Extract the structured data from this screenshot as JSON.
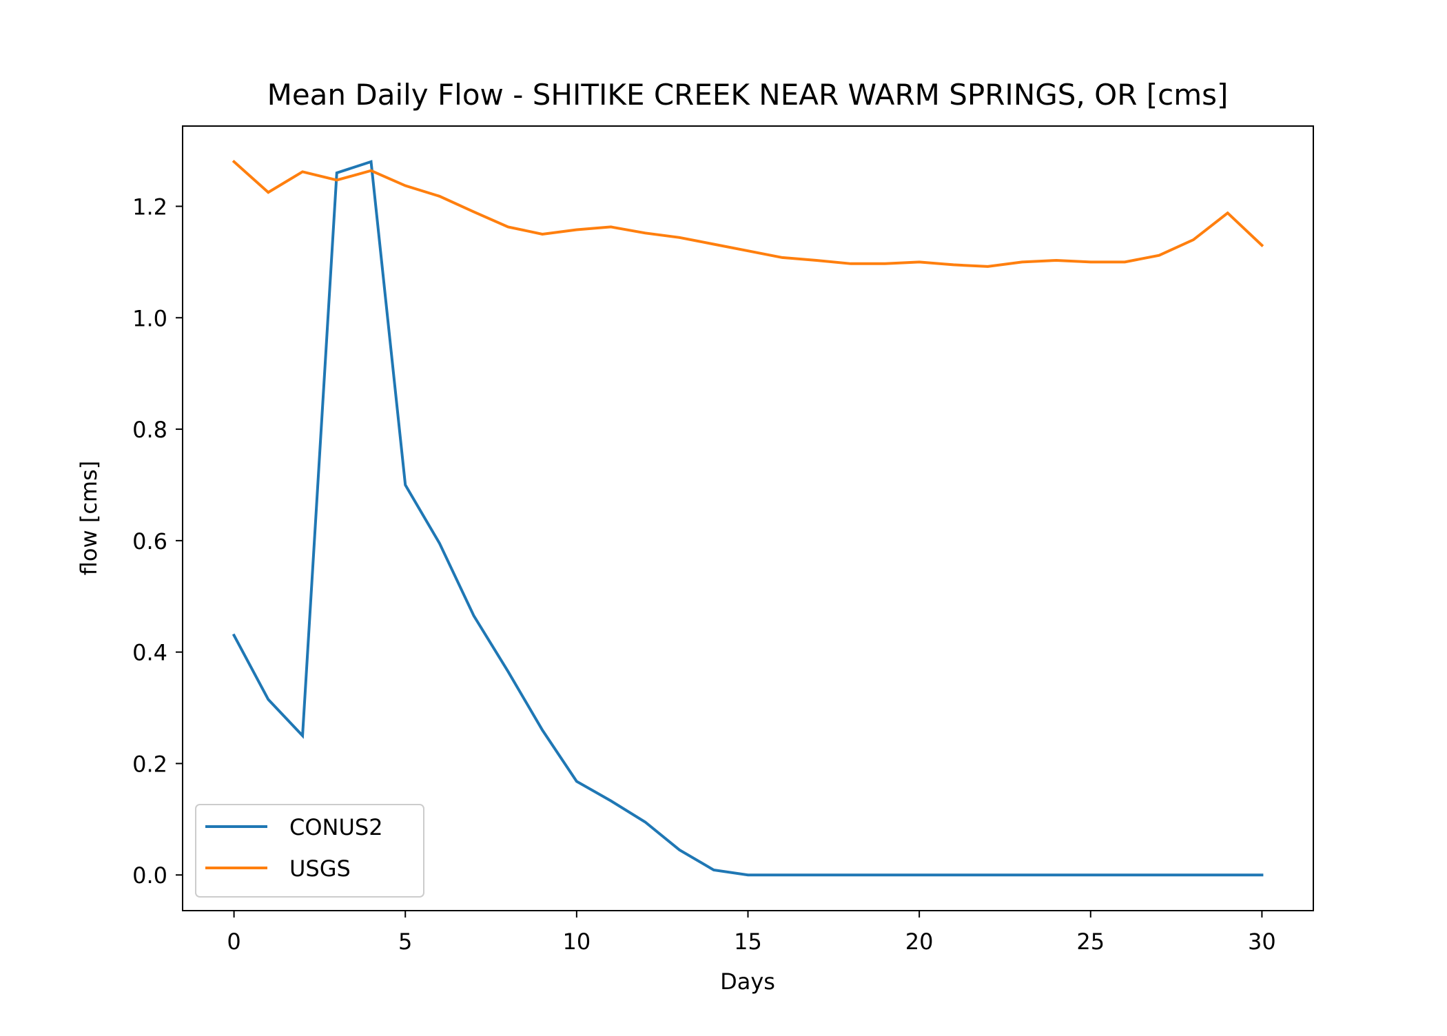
{
  "chart_data": {
    "type": "line",
    "title": "Mean Daily Flow - SHITIKE CREEK NEAR WARM SPRINGS, OR [cms]",
    "xlabel": "Days",
    "ylabel": "flow [cms]",
    "xlim": [
      -1.5,
      31.5
    ],
    "ylim": [
      -0.064,
      1.344
    ],
    "xticks": [
      0,
      5,
      10,
      15,
      20,
      25,
      30
    ],
    "xtick_labels": [
      "0",
      "5",
      "10",
      "15",
      "20",
      "25",
      "30"
    ],
    "yticks": [
      0.0,
      0.2,
      0.4,
      0.6,
      0.8,
      1.0,
      1.2
    ],
    "ytick_labels": [
      "0.0",
      "0.2",
      "0.4",
      "0.6",
      "0.8",
      "1.0",
      "1.2"
    ],
    "grid": false,
    "legend_position": "lower-left",
    "x": [
      0,
      1,
      2,
      3,
      4,
      5,
      6,
      7,
      8,
      9,
      10,
      11,
      12,
      13,
      14,
      15,
      16,
      17,
      18,
      19,
      20,
      21,
      22,
      23,
      24,
      25,
      26,
      27,
      28,
      29,
      30
    ],
    "series": [
      {
        "name": "CONUS2",
        "color": "#1f77b4",
        "values": [
          0.43,
          0.315,
          0.25,
          1.26,
          1.28,
          0.7,
          0.595,
          0.465,
          0.365,
          0.26,
          0.168,
          0.133,
          0.095,
          0.045,
          0.009,
          0.0,
          0.0,
          0.0,
          0.0,
          0.0,
          0.0,
          0.0,
          0.0,
          0.0,
          0.0,
          0.0,
          0.0,
          0.0,
          0.0,
          0.0,
          0.0
        ]
      },
      {
        "name": "USGS",
        "color": "#ff7f0e",
        "values": [
          1.28,
          1.225,
          1.262,
          1.247,
          1.264,
          1.237,
          1.218,
          1.19,
          1.163,
          1.15,
          1.158,
          1.163,
          1.152,
          1.144,
          1.132,
          1.12,
          1.108,
          1.103,
          1.097,
          1.097,
          1.1,
          1.095,
          1.092,
          1.1,
          1.103,
          1.1,
          1.1,
          1.112,
          1.14,
          1.188,
          1.13
        ]
      }
    ]
  }
}
